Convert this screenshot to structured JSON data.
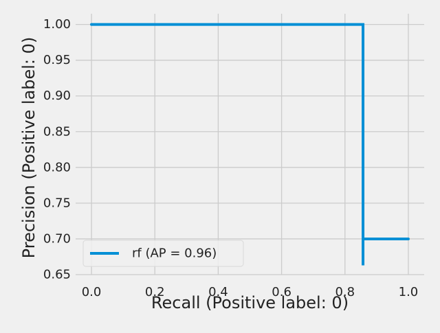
{
  "chart_data": {
    "type": "line",
    "title": "",
    "xlabel": "Recall (Positive label: 0)",
    "ylabel": "Precision (Positive label: 0)",
    "xlim": [
      -0.05,
      1.05
    ],
    "ylim": [
      0.65,
      1.015
    ],
    "xticks": [
      0.0,
      0.2,
      0.4,
      0.6,
      0.8,
      1.0
    ],
    "xtick_labels": [
      "0.0",
      "0.2",
      "0.4",
      "0.6",
      "0.8",
      "1.0"
    ],
    "yticks": [
      0.65,
      0.7,
      0.75,
      0.8,
      0.85,
      0.9,
      0.95,
      1.0
    ],
    "ytick_labels": [
      "0.65",
      "0.70",
      "0.75",
      "0.80",
      "0.85",
      "0.90",
      "0.95",
      "1.00"
    ],
    "grid": true,
    "legend_position": "lower-left",
    "series": [
      {
        "name": "rf (AP = 0.96)",
        "color": "#008fd5",
        "drawstyle": "steps-post",
        "x": [
          0.0,
          0.857,
          0.857,
          0.857,
          1.0
        ],
        "y": [
          1.0,
          1.0,
          0.663,
          0.7,
          0.7
        ]
      }
    ]
  }
}
